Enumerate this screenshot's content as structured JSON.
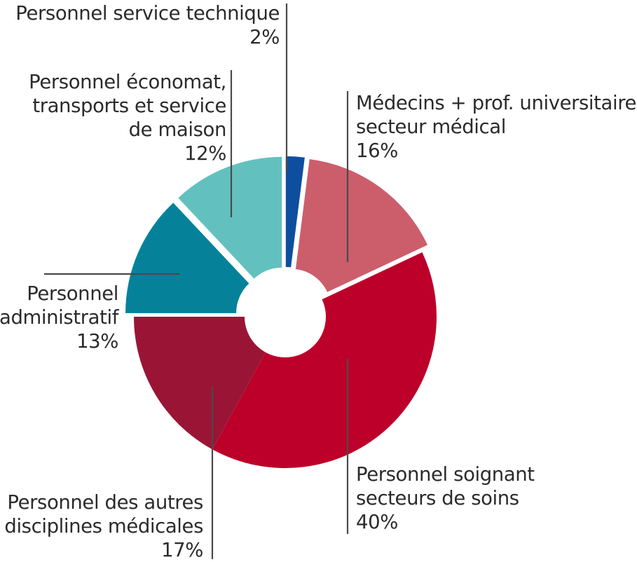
{
  "chart_data": {
    "type": "pie",
    "donut": true,
    "slices": [
      {
        "key": "tech",
        "lines": [
          "Personnel service technique"
        ],
        "value": 2,
        "value_label": "2%",
        "color": "#0e4e9e",
        "exploded": true
      },
      {
        "key": "med",
        "lines": [
          "Médecins + prof. universitaires",
          "secteur médical"
        ],
        "value": 16,
        "value_label": "16%",
        "color": "#cc5e6c",
        "exploded": true
      },
      {
        "key": "soin",
        "lines": [
          "Personnel soignant",
          "secteurs de soins"
        ],
        "value": 40,
        "value_label": "40%",
        "color": "#bd0029",
        "exploded": false
      },
      {
        "key": "autres",
        "lines": [
          "Personnel des autres",
          "disciplines médicales"
        ],
        "value": 17,
        "value_label": "17%",
        "color": "#9a1535",
        "exploded": false
      },
      {
        "key": "admin",
        "lines": [
          "Personnel",
          "administratif"
        ],
        "value": 13,
        "value_label": "13%",
        "color": "#05829a",
        "exploded": true
      },
      {
        "key": "econ",
        "lines": [
          "Personnel économat,",
          "transports et service",
          "de maison"
        ],
        "value": 12,
        "value_label": "12%",
        "color": "#62c1be",
        "exploded": true
      }
    ],
    "start_angle_deg": 0,
    "direction": "clockwise",
    "leader_color": "#4a4a4a"
  }
}
